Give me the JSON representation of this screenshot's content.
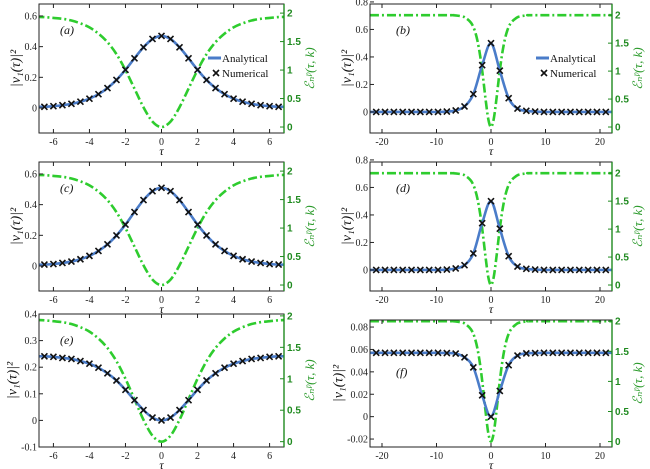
{
  "labels": {
    "y_left": "|v₁(τ)|²",
    "y_right": "ℰₙᵖ(τ, k)",
    "x": "τ",
    "legend_analytical": "Analytical",
    "legend_numerical": "Numerical"
  },
  "colors": {
    "analytical": "#4a7cc9",
    "numerical": "#111111",
    "energy": "#2ecc2e",
    "right_axis": "#1f8a1f"
  },
  "chart_data": [
    {
      "panel": "(a)",
      "type": "line",
      "legend": true,
      "xlim": [
        -6.8,
        6.8
      ],
      "ylim_left": [
        -0.163,
        0.678
      ],
      "ylim_right": [
        -0.105,
        2.16
      ],
      "xticks": [
        -6,
        -4,
        -2,
        0,
        2,
        4,
        6
      ],
      "yticks_left": [
        0,
        0.2,
        0.4,
        0.6
      ],
      "yticks_right": [
        0,
        0.5,
        1,
        1.5,
        2
      ],
      "numerical": {
        "x": [
          -6.5,
          -6,
          -5.5,
          -5,
          -4.5,
          -4,
          -3.5,
          -3,
          -2.5,
          -2,
          -1.5,
          -1,
          -0.5,
          0,
          0.5,
          1,
          1.5,
          2,
          2.5,
          3,
          3.5,
          4,
          4.5,
          5,
          5.5,
          6,
          6.5
        ],
        "y": [
          0.008,
          0.012,
          0.018,
          0.027,
          0.041,
          0.061,
          0.09,
          0.13,
          0.183,
          0.249,
          0.324,
          0.396,
          0.45,
          0.47,
          0.45,
          0.396,
          0.324,
          0.249,
          0.183,
          0.13,
          0.09,
          0.061,
          0.041,
          0.027,
          0.018,
          0.012,
          0.008
        ]
      },
      "energy": {
        "x": [
          -7,
          -6.5,
          -6,
          -5.5,
          -5,
          -4.5,
          -4,
          -3.5,
          -3,
          -2.5,
          -2,
          -1.5,
          -1,
          -0.5,
          0,
          0.5,
          1,
          1.5,
          2,
          2.5,
          3,
          3.5,
          4,
          4.5,
          5,
          5.5,
          6,
          6.5,
          7
        ],
        "y": [
          1.935,
          1.93,
          1.915,
          1.9,
          1.87,
          1.82,
          1.75,
          1.64,
          1.49,
          1.28,
          1.0,
          0.674,
          0.347,
          0.095,
          0,
          0.095,
          0.347,
          0.674,
          1.0,
          1.28,
          1.49,
          1.64,
          1.75,
          1.82,
          1.87,
          1.9,
          1.915,
          1.93,
          1.935
        ]
      }
    },
    {
      "panel": "(b)",
      "type": "line",
      "legend": true,
      "xlim": [
        -22.2,
        22.2
      ],
      "ylim_left": [
        -0.153,
        0.785
      ],
      "ylim_right": [
        -0.107,
        2.2
      ],
      "xticks": [
        -20,
        -10,
        0,
        10,
        20
      ],
      "yticks_left": [
        0,
        0.2,
        0.4,
        0.6,
        0.8
      ],
      "yticks_right": [
        0,
        0.5,
        1,
        1.5,
        2
      ],
      "numerical": {
        "x": [
          -21.06,
          -19.44,
          -17.82,
          -16.2,
          -14.58,
          -12.96,
          -11.34,
          -9.72,
          -8.1,
          -6.48,
          -4.86,
          -3.24,
          -1.62,
          0,
          1.62,
          3.24,
          4.86,
          6.48,
          8.1,
          9.72,
          11.34,
          12.96,
          14.58,
          16.2,
          17.82,
          19.44,
          21.06
        ],
        "y": [
          0,
          0,
          0,
          0,
          0,
          0,
          0,
          0,
          0.003,
          0.011,
          0.04,
          0.13,
          0.34,
          0.5,
          0.3,
          0.1,
          0.025,
          0.008,
          0.003,
          0,
          0,
          0,
          0,
          0,
          0,
          0,
          0
        ]
      },
      "energy": {
        "x": [
          -22.2,
          -8,
          -7,
          -6,
          -5,
          -4.5,
          -4,
          -3.5,
          -3,
          -2.5,
          -2,
          -1.5,
          -1,
          -0.5,
          0,
          0.5,
          1,
          1.5,
          2,
          2.5,
          3,
          3.5,
          4,
          4.5,
          5,
          6,
          7,
          8,
          22.2
        ],
        "y": [
          2,
          2,
          2,
          1.99,
          1.97,
          1.94,
          1.9,
          1.84,
          1.73,
          1.55,
          1.28,
          0.92,
          0.502,
          0.144,
          0,
          0.144,
          0.502,
          0.92,
          1.28,
          1.55,
          1.73,
          1.84,
          1.9,
          1.94,
          1.97,
          1.99,
          2,
          2,
          2
        ]
      }
    },
    {
      "panel": "(c)",
      "type": "line",
      "legend": false,
      "xlim": [
        -6.8,
        6.8
      ],
      "ylim_left": [
        -0.163,
        0.678
      ],
      "ylim_right": [
        -0.105,
        2.16
      ],
      "xticks": [
        -6,
        -4,
        -2,
        0,
        2,
        4,
        6
      ],
      "yticks_left": [
        0,
        0.2,
        0.4,
        0.6
      ],
      "yticks_right": [
        0,
        0.5,
        1,
        1.5,
        2
      ],
      "numerical": {
        "x": [
          -6.5,
          -6,
          -5.5,
          -5,
          -4.5,
          -4,
          -3.5,
          -3,
          -2.5,
          -2,
          -1.5,
          -1,
          -0.5,
          0,
          0.5,
          1,
          1.5,
          2,
          2.5,
          3,
          3.5,
          4,
          4.5,
          5,
          5.5,
          6,
          6.5
        ],
        "y": [
          0.009,
          0.013,
          0.02,
          0.029,
          0.044,
          0.066,
          0.098,
          0.141,
          0.199,
          0.27,
          0.352,
          0.43,
          0.488,
          0.51,
          0.488,
          0.43,
          0.352,
          0.27,
          0.199,
          0.141,
          0.098,
          0.066,
          0.044,
          0.029,
          0.02,
          0.013,
          0.009
        ]
      },
      "energy": {
        "x": [
          -7,
          -6.5,
          -6,
          -5.5,
          -5,
          -4.5,
          -4,
          -3.5,
          -3,
          -2.5,
          -2,
          -1.5,
          -1,
          -0.5,
          0,
          0.5,
          1,
          1.5,
          2,
          2.5,
          3,
          3.5,
          4,
          4.5,
          5,
          5.5,
          6,
          6.5,
          7
        ],
        "y": [
          1.935,
          1.93,
          1.915,
          1.9,
          1.87,
          1.82,
          1.75,
          1.64,
          1.49,
          1.28,
          1.0,
          0.674,
          0.347,
          0.095,
          0,
          0.095,
          0.347,
          0.674,
          1.0,
          1.28,
          1.49,
          1.64,
          1.75,
          1.82,
          1.87,
          1.9,
          1.915,
          1.93,
          1.935
        ]
      }
    },
    {
      "panel": "(d)",
      "type": "line",
      "legend": false,
      "xlim": [
        -22.2,
        22.2
      ],
      "ylim_left": [
        -0.153,
        0.785
      ],
      "ylim_right": [
        -0.107,
        2.2
      ],
      "xticks": [
        -20,
        -10,
        0,
        10,
        20
      ],
      "yticks_left": [
        0,
        0.2,
        0.4,
        0.6,
        0.8
      ],
      "yticks_right": [
        0,
        0.5,
        1,
        1.5,
        2
      ],
      "numerical": {
        "x": [
          -21.06,
          -19.44,
          -17.82,
          -16.2,
          -14.58,
          -12.96,
          -11.34,
          -9.72,
          -8.1,
          -6.48,
          -4.86,
          -3.24,
          -1.62,
          0,
          1.62,
          3.24,
          4.86,
          6.48,
          8.1,
          9.72,
          11.34,
          12.96,
          14.58,
          16.2,
          17.82,
          19.44,
          21.06
        ],
        "y": [
          0,
          0,
          0,
          0,
          0,
          0,
          0,
          0,
          0.003,
          0.011,
          0.035,
          0.12,
          0.34,
          0.5,
          0.3,
          0.1,
          0.025,
          0.008,
          0.003,
          0,
          0,
          0,
          0,
          0,
          0,
          0,
          0
        ]
      },
      "energy": {
        "x": [
          -22.2,
          -8,
          -7,
          -6,
          -5,
          -4.5,
          -4,
          -3.5,
          -3,
          -2.5,
          -2,
          -1.5,
          -1,
          -0.5,
          0,
          0.5,
          1,
          1.5,
          2,
          2.5,
          3,
          3.5,
          4,
          4.5,
          5,
          6,
          7,
          8,
          22.2
        ],
        "y": [
          2,
          2,
          2,
          1.99,
          1.97,
          1.94,
          1.9,
          1.84,
          1.73,
          1.55,
          1.28,
          0.92,
          0.502,
          0.144,
          0,
          0.144,
          0.502,
          0.92,
          1.28,
          1.55,
          1.73,
          1.84,
          1.9,
          1.94,
          1.97,
          1.99,
          2,
          2,
          2
        ]
      }
    },
    {
      "panel": "(e)",
      "type": "line",
      "legend": false,
      "xlim": [
        -6.8,
        6.8
      ],
      "ylim_left": [
        -0.1,
        0.4
      ],
      "ylim_right": [
        -0.085,
        2.03
      ],
      "xticks": [
        -6,
        -4,
        -2,
        0,
        2,
        4,
        6
      ],
      "yticks_left": [
        -0.1,
        0,
        0.1,
        0.2,
        0.3,
        0.4
      ],
      "yticks_right": [
        0,
        0.5,
        1,
        1.5,
        2
      ],
      "numerical": {
        "x": [
          -6.5,
          -6,
          -5.5,
          -5,
          -4.5,
          -4,
          -3.5,
          -3,
          -2.5,
          -2,
          -1.5,
          -1,
          -0.5,
          0,
          0.5,
          1,
          1.5,
          2,
          2.5,
          3,
          3.5,
          4,
          4.5,
          5,
          5.5,
          6,
          6.5
        ],
        "y": [
          0.241,
          0.239,
          0.235,
          0.231,
          0.223,
          0.213,
          0.198,
          0.177,
          0.15,
          0.115,
          0.076,
          0.039,
          0.0105,
          0,
          0.0105,
          0.039,
          0.076,
          0.115,
          0.15,
          0.177,
          0.198,
          0.213,
          0.223,
          0.231,
          0.235,
          0.239,
          0.241
        ]
      },
      "energy": {
        "x": [
          -7,
          -6.5,
          -6,
          -5.5,
          -5,
          -4.5,
          -4,
          -3.5,
          -3,
          -2.5,
          -2,
          -1.5,
          -1,
          -0.5,
          0,
          0.5,
          1,
          1.5,
          2,
          2.5,
          3,
          3.5,
          4,
          4.5,
          5,
          5.5,
          6,
          6.5,
          7
        ],
        "y": [
          1.935,
          1.93,
          1.915,
          1.9,
          1.87,
          1.82,
          1.75,
          1.64,
          1.49,
          1.28,
          1.0,
          0.674,
          0.347,
          0.095,
          0,
          0.095,
          0.347,
          0.674,
          1.0,
          1.28,
          1.49,
          1.64,
          1.75,
          1.82,
          1.87,
          1.9,
          1.915,
          1.93,
          1.935
        ]
      }
    },
    {
      "panel": "(f)",
      "type": "line",
      "legend": false,
      "xlim": [
        -22.2,
        22.2
      ],
      "ylim_left": [
        -0.0271,
        0.0863
      ],
      "ylim_right": [
        -0.09,
        2.02
      ],
      "xticks": [
        -20,
        -10,
        0,
        10,
        20
      ],
      "yticks_left": [
        -0.02,
        0,
        0.02,
        0.04,
        0.06,
        0.08
      ],
      "yticks_right": [
        0,
        0.5,
        1,
        1.5,
        2
      ],
      "numerical": {
        "x": [
          -21.06,
          -19.44,
          -17.82,
          -16.2,
          -14.58,
          -12.96,
          -11.34,
          -9.72,
          -8.1,
          -6.48,
          -4.86,
          -3.24,
          -1.62,
          0,
          1.62,
          3.24,
          4.86,
          6.48,
          8.1,
          9.72,
          11.34,
          12.96,
          14.58,
          16.2,
          17.82,
          19.44,
          21.06
        ],
        "y": [
          0.057,
          0.057,
          0.057,
          0.057,
          0.057,
          0.057,
          0.057,
          0.057,
          0.0568,
          0.0563,
          0.053,
          0.044,
          0.019,
          0,
          0.023,
          0.046,
          0.0545,
          0.0565,
          0.0568,
          0.057,
          0.057,
          0.057,
          0.057,
          0.057,
          0.057,
          0.057,
          0.057
        ]
      },
      "energy": {
        "x": [
          -22.2,
          -8,
          -7,
          -6,
          -5,
          -4.5,
          -4,
          -3.5,
          -3,
          -2.5,
          -2,
          -1.5,
          -1,
          -0.5,
          0,
          0.5,
          1,
          1.5,
          2,
          2.5,
          3,
          3.5,
          4,
          4.5,
          5,
          6,
          7,
          8,
          22.2
        ],
        "y": [
          2,
          2,
          2,
          1.99,
          1.97,
          1.94,
          1.9,
          1.84,
          1.73,
          1.55,
          1.28,
          0.92,
          0.502,
          0.144,
          0,
          0.144,
          0.502,
          0.92,
          1.28,
          1.55,
          1.73,
          1.84,
          1.9,
          1.94,
          1.97,
          1.99,
          2,
          2,
          2
        ]
      }
    }
  ]
}
